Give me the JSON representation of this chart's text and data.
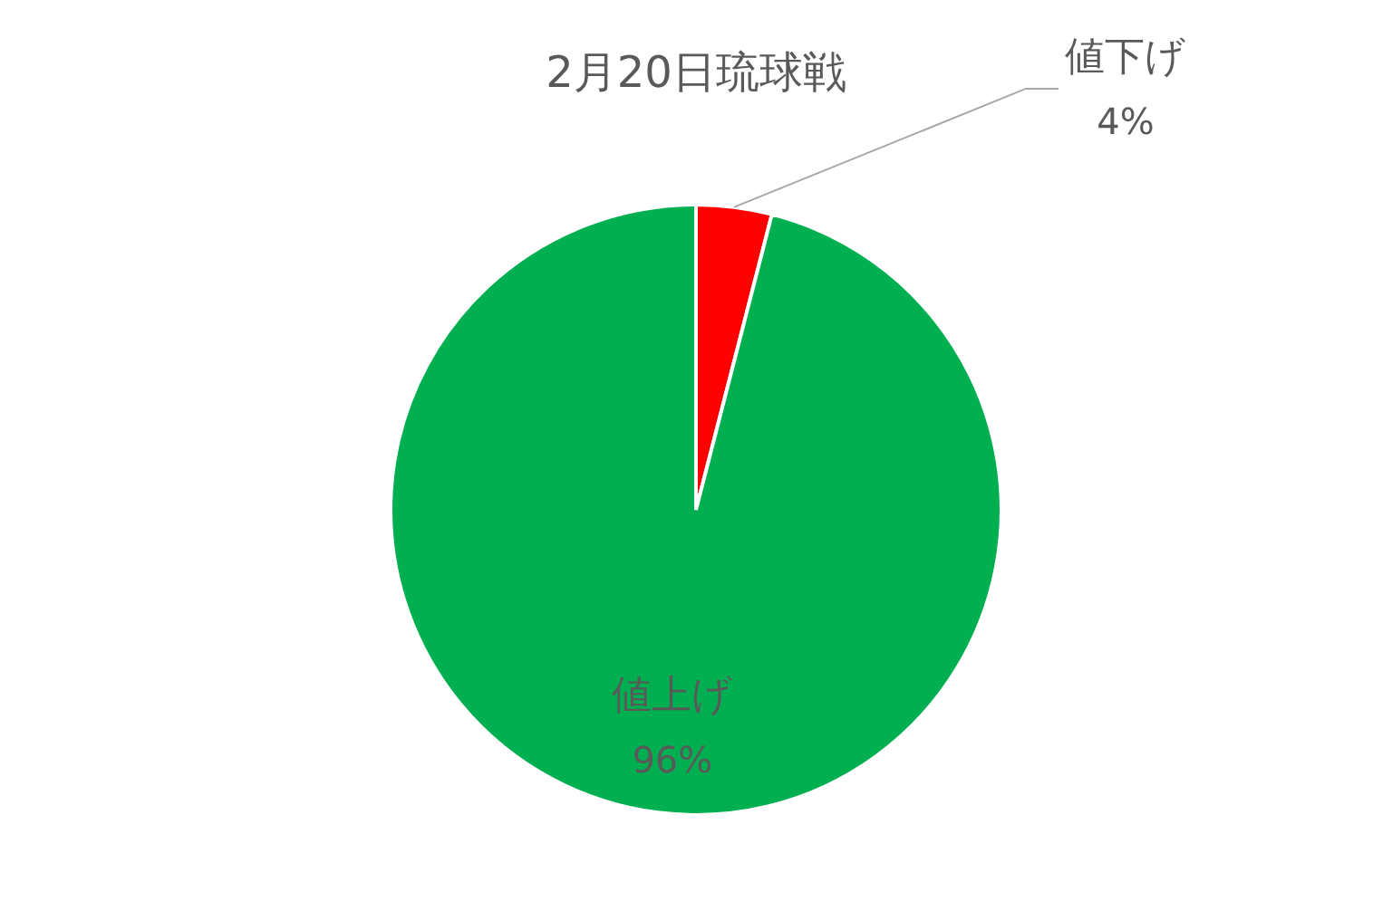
{
  "chart_data": {
    "type": "pie",
    "title": "2月20日琉球戦",
    "categories": [
      "値下げ",
      "値上げ"
    ],
    "values": [
      4,
      96
    ],
    "colors": [
      "#ff0000",
      "#00b050"
    ],
    "value_labels": [
      "4%",
      "96%"
    ],
    "legend": false
  }
}
